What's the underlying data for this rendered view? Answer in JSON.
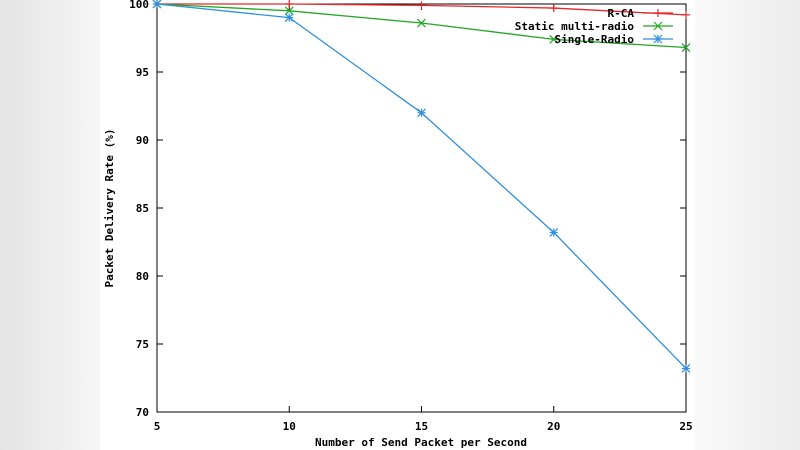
{
  "chart_data": {
    "type": "line",
    "title": "",
    "xlabel": "Number of Send Packet per Second",
    "ylabel": "Packet Delivery Rate (%)",
    "x": [
      5,
      10,
      15,
      20,
      25
    ],
    "xlim": [
      5,
      25
    ],
    "ylim": [
      70,
      100
    ],
    "xticks": [
      "5",
      "10",
      "15",
      "20",
      "25"
    ],
    "yticks": [
      "70",
      "75",
      "80",
      "85",
      "90",
      "95",
      "100"
    ],
    "grid": false,
    "legend_position": "top-right",
    "series": [
      {
        "name": "R-CA",
        "color": "#e8262b",
        "marker": "plus",
        "values": [
          100,
          100,
          99.9,
          99.7,
          99.2
        ]
      },
      {
        "name": "Static multi-radio",
        "color": "#22a822",
        "marker": "x",
        "values": [
          100,
          99.5,
          98.6,
          97.4,
          96.8
        ]
      },
      {
        "name": "Single-Radio",
        "color": "#2f8fe0",
        "marker": "star",
        "values": [
          100,
          99.0,
          92.0,
          83.2,
          73.2
        ]
      }
    ]
  }
}
